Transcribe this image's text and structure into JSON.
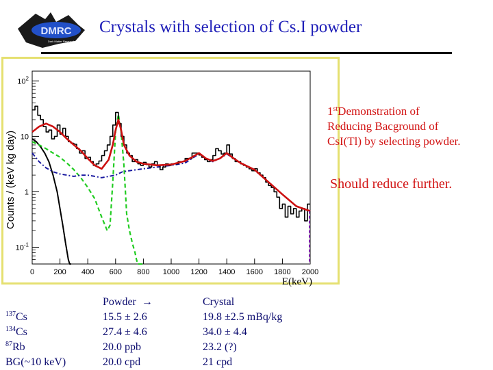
{
  "title": "Crystals with selection of  Cs.I powder",
  "logo": {
    "text": "DMRC",
    "subtitle": "Dark Matter Research Center"
  },
  "notes": {
    "demo_sup": "st",
    "demo_line1": "Demonstration of",
    "demo_line2": "Reducing Bacground of",
    "demo_line3": "CsI(Tl) by selecting powder.",
    "further": "Should reduce further."
  },
  "chart_data": {
    "type": "line",
    "ylabel": "Counts / (keV kg day)",
    "xlabel": "E(keV)",
    "xlim": [
      0,
      2000
    ],
    "ylim": [
      0.05,
      150
    ],
    "yscale": "log",
    "x_ticks": [
      "0",
      "200",
      "400",
      "600",
      "800",
      "1000",
      "1200",
      "1400",
      "1600",
      "1800",
      "2000"
    ],
    "y_ticks": [
      {
        "value": 100,
        "base": "10",
        "exp": "2"
      },
      {
        "value": 10,
        "base": "10",
        "exp": ""
      },
      {
        "value": 1,
        "base": "1",
        "exp": ""
      },
      {
        "value": 0.1,
        "base": "10",
        "exp": "-1"
      }
    ],
    "colors": {
      "data": "#000000",
      "total": "#cc1010",
      "cs137": "#22cc22",
      "cs134": "#1a1aa0",
      "k40": "#000000",
      "frame": "#e5e070",
      "total_fit": "#7a1aa8"
    },
    "series": [
      {
        "key": "data",
        "style": "histogram",
        "x": [
          20,
          40,
          60,
          80,
          100,
          120,
          140,
          160,
          180,
          200,
          220,
          240,
          260,
          280,
          300,
          320,
          340,
          360,
          380,
          400,
          420,
          440,
          460,
          480,
          500,
          520,
          540,
          560,
          580,
          600,
          620,
          640,
          660,
          680,
          700,
          720,
          740,
          760,
          780,
          800,
          820,
          840,
          860,
          880,
          900,
          920,
          940,
          960,
          980,
          1000,
          1050,
          1100,
          1150,
          1200,
          1220,
          1240,
          1260,
          1280,
          1300,
          1320,
          1340,
          1360,
          1380,
          1400,
          1420,
          1440,
          1460,
          1480,
          1500,
          1520,
          1540,
          1560,
          1580,
          1600,
          1620,
          1640,
          1660,
          1680,
          1700,
          1720,
          1740,
          1760,
          1780,
          1800,
          1820,
          1840,
          1860,
          1880,
          1900,
          1920,
          1940,
          1960,
          1980,
          2000
        ],
        "y": [
          30,
          35,
          24,
          20,
          15,
          12,
          13,
          9,
          10,
          16,
          11,
          14,
          10,
          8,
          7.5,
          7.2,
          6,
          5,
          5.5,
          4,
          4.2,
          3.5,
          3,
          3.2,
          3.6,
          4.5,
          5.5,
          7,
          10,
          16,
          27,
          17,
          10,
          7,
          5,
          4.5,
          3.5,
          3.8,
          3.2,
          3,
          3.4,
          3.1,
          2.8,
          3.2,
          3.5,
          3,
          2.5,
          2.8,
          3.2,
          3,
          3.2,
          3.5,
          4,
          5,
          4.6,
          4.2,
          3.8,
          3.5,
          3.8,
          4.5,
          6,
          5.5,
          4.8,
          5,
          7,
          4.8,
          4,
          3.5,
          3.5,
          3.2,
          3,
          2.8,
          2.6,
          2.4,
          2.6,
          2.2,
          2,
          1.8,
          1.5,
          1.3,
          1.2,
          1,
          0.8,
          0.5,
          0.6,
          0.35,
          0.55,
          0.4,
          0.5,
          0.35,
          0.45,
          0.5,
          0.3,
          0.6
        ]
      },
      {
        "key": "total",
        "style": "solid",
        "x": [
          0,
          50,
          100,
          150,
          200,
          250,
          300,
          350,
          400,
          450,
          500,
          550,
          580,
          600,
          620,
          640,
          660,
          700,
          750,
          800,
          850,
          900,
          1000,
          1100,
          1150,
          1200,
          1250,
          1300,
          1350,
          1400,
          1450,
          1500,
          1600,
          1700,
          1800,
          1900,
          2000
        ],
        "y": [
          12,
          15,
          17,
          15,
          12,
          9,
          7,
          5.5,
          4,
          3,
          2.6,
          3.8,
          7,
          13,
          20,
          13,
          7,
          4.5,
          3.5,
          3.2,
          3.1,
          3,
          3.1,
          3.6,
          4.2,
          5,
          4,
          3.6,
          4,
          5,
          4,
          3.3,
          2.5,
          1.5,
          0.9,
          0.55,
          0.45
        ]
      },
      {
        "key": "cs137",
        "style": "dash",
        "x": [
          0,
          50,
          100,
          150,
          200,
          250,
          300,
          350,
          400,
          450,
          500,
          540,
          560,
          580,
          600,
          620,
          640,
          660,
          680,
          700,
          720,
          740,
          750,
          760,
          800
        ],
        "y": [
          8,
          7,
          6,
          5,
          4.2,
          3.3,
          2.5,
          1.8,
          1.2,
          0.75,
          0.35,
          0.2,
          0.25,
          1.5,
          12,
          25,
          12,
          3,
          0.4,
          0.2,
          0.12,
          0.08,
          0.06,
          0.05,
          0.05
        ]
      },
      {
        "key": "cs134",
        "style": "dashdot",
        "x": [
          0,
          50,
          100,
          150,
          200,
          250,
          300,
          350,
          400,
          450,
          500,
          550,
          600,
          650,
          700,
          750,
          800,
          900,
          1000,
          1100,
          1150,
          1200,
          1250,
          1300,
          1350,
          1400,
          1450,
          1500,
          1600,
          1700,
          1800,
          1900,
          2000
        ],
        "y": [
          5,
          3.5,
          2.7,
          2.3,
          2.1,
          2,
          1.9,
          2,
          2,
          1.9,
          1.8,
          1.9,
          2,
          2.3,
          2.4,
          2.5,
          2.6,
          2.8,
          3,
          3.3,
          4,
          4.8,
          4,
          3.5,
          4,
          4.8,
          4,
          3.3,
          2.5,
          1.5,
          0.9,
          0.55,
          0.45
        ]
      },
      {
        "key": "k40",
        "style": "solid",
        "x": [
          0,
          30,
          60,
          90,
          120,
          150,
          180,
          200,
          220,
          240,
          260,
          270,
          280
        ],
        "y": [
          9,
          8,
          6.5,
          5,
          3.5,
          2,
          1,
          0.5,
          0.25,
          0.12,
          0.06,
          0.05,
          0.05
        ]
      }
    ]
  },
  "table": {
    "isotopes": [
      {
        "mass": "137",
        "symbol": "Cs"
      },
      {
        "mass": "134",
        "symbol": "Cs"
      },
      {
        "mass": "87",
        "symbol": "Rb"
      },
      {
        "mass": "",
        "symbol": "BG(~10 keV)"
      }
    ],
    "powder_header": "Powder",
    "powder_arrow": "→",
    "powder": [
      " 15.5 ± 2.6",
      " 27.4 ± 4.6",
      "20.0 ppb",
      "20.0 cpd"
    ],
    "crystal_header": "Crystal",
    "crystal": [
      "19.8 ±2.5 mBq/kg",
      "34.0 ± 4.4",
      "23.2 (?)",
      "21 cpd"
    ]
  }
}
